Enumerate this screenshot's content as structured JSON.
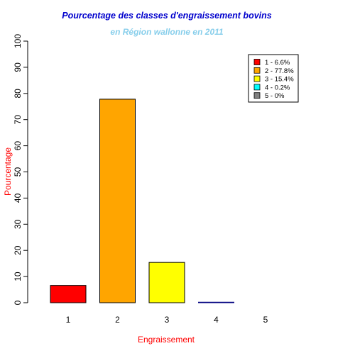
{
  "chart_data": {
    "type": "bar",
    "title": "Pourcentage des classes d'engraissement bovins",
    "subtitle": "en Région wallonne en 2011",
    "xlabel": "Engraissement",
    "ylabel": "Pourcentage",
    "ylim": [
      0,
      100
    ],
    "yticks": [
      0,
      10,
      20,
      30,
      40,
      50,
      60,
      70,
      80,
      90,
      100
    ],
    "categories": [
      "1",
      "2",
      "3",
      "4",
      "5"
    ],
    "values": [
      6.6,
      77.8,
      15.4,
      0.2,
      0
    ],
    "colors": [
      "#ff0000",
      "#ffa500",
      "#ffff00",
      "#00ffff",
      "#808080"
    ],
    "legend_position": "top-right",
    "legend": [
      "1 - 6.6%",
      "2 - 77.8%",
      "3 - 15.4%",
      "4 - 0.2%",
      "5 - 0%"
    ],
    "grid": false,
    "title_color": "#0000cd",
    "subtitle_color": "#87ceeb",
    "axis_label_color": "#ff0000"
  }
}
